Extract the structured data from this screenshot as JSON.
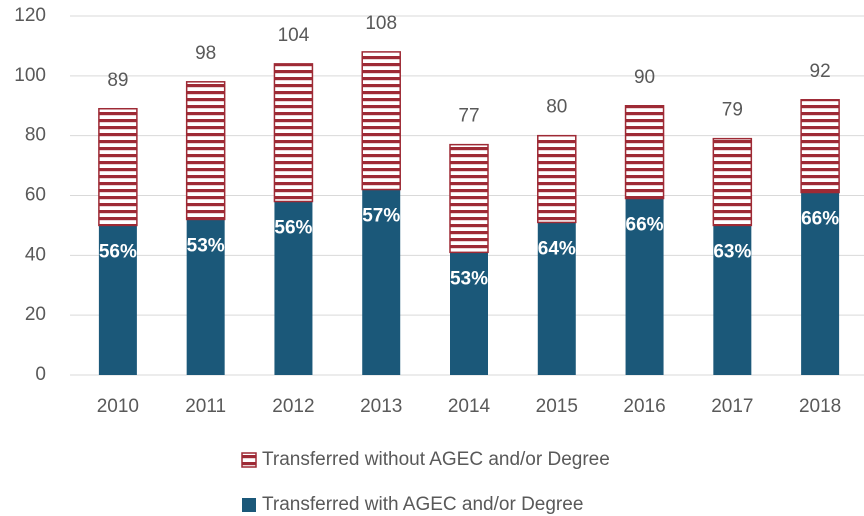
{
  "chart_data": {
    "type": "stacked_bar",
    "categories": [
      "2010",
      "2011",
      "2012",
      "2013",
      "2014",
      "2015",
      "2016",
      "2017",
      "2018"
    ],
    "series": [
      {
        "name": "Transferred with AGEC and/or Degree",
        "color": "#1b5879",
        "values": [
          50,
          52,
          58,
          62,
          41,
          51,
          59,
          50,
          61
        ],
        "share_labels": [
          "56%",
          "53%",
          "56%",
          "57%",
          "53%",
          "64%",
          "66%",
          "63%",
          "66%"
        ]
      },
      {
        "name": "Transferred without AGEC and/or Degree",
        "color": "#9e2a35",
        "pattern": "horizontal-stripes",
        "values": [
          39,
          46,
          46,
          46,
          36,
          29,
          31,
          29,
          31
        ]
      }
    ],
    "totals": [
      89,
      98,
      104,
      108,
      77,
      80,
      90,
      79,
      92
    ],
    "ylim": [
      0,
      120
    ],
    "yticks": [
      0,
      20,
      40,
      60,
      80,
      100,
      120
    ],
    "grid": true,
    "legend": "bottom"
  }
}
